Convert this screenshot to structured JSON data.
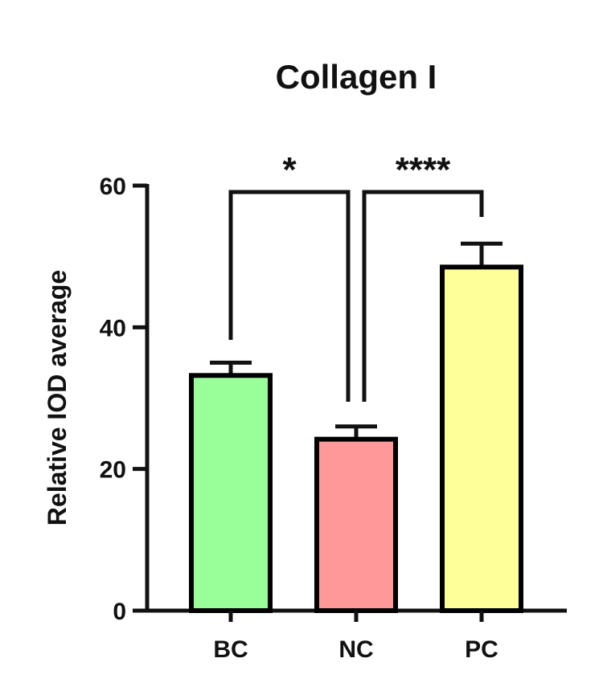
{
  "chart_data": {
    "type": "bar",
    "title": "Collagen I",
    "xlabel": "",
    "ylabel": "Relative IOD average",
    "categories": [
      "BC",
      "NC",
      "PC"
    ],
    "values": [
      33.2,
      24.2,
      48.5
    ],
    "errors": [
      1.8,
      1.8,
      3.3
    ],
    "colors": [
      "#99ff99",
      "#ff9999",
      "#ffff99"
    ],
    "edge_color": "#000000",
    "ylim": [
      0,
      60
    ],
    "yticks": [
      0,
      20,
      40,
      60
    ],
    "grid": false,
    "legend": "none",
    "comparisons": [
      {
        "groups": [
          "BC",
          "NC"
        ],
        "label": "*"
      },
      {
        "groups": [
          "NC",
          "PC"
        ],
        "label": "****"
      }
    ]
  }
}
